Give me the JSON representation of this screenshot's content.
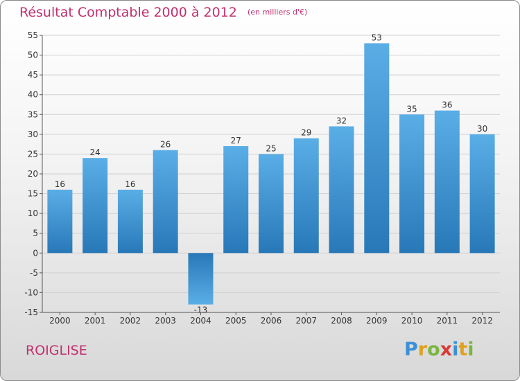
{
  "chart_data": {
    "type": "bar",
    "title": "Résultat Comptable 2000 à 2012",
    "subtitle": "(en milliers d'€)",
    "categories": [
      "2000",
      "2001",
      "2002",
      "2003",
      "2004",
      "2005",
      "2006",
      "2007",
      "2008",
      "2009",
      "2010",
      "2011",
      "2012"
    ],
    "values": [
      16,
      24,
      16,
      26,
      -13,
      27,
      25,
      29,
      32,
      53,
      35,
      36,
      30
    ],
    "data_labels": [
      "16",
      "24",
      "16",
      "26",
      "-13",
      "27",
      "25",
      "29",
      "32",
      "53",
      "35",
      "36",
      "30"
    ],
    "y_ticks": [
      -15,
      -10,
      -5,
      0,
      5,
      10,
      15,
      20,
      25,
      30,
      35,
      40,
      45,
      50,
      55
    ],
    "y_tick_labels": [
      "-15",
      "-10",
      "-5",
      "0",
      "5",
      "10",
      "15",
      "20",
      "25",
      "30",
      "35",
      "40",
      "45",
      "50",
      "55"
    ],
    "ylim": [
      -15,
      55
    ],
    "xlabel": "",
    "ylabel": "",
    "grid": true,
    "legend": "none"
  },
  "footer": {
    "town": "ROIGLISE",
    "logo_letters": [
      "P",
      "r",
      "o",
      "x",
      "i",
      "t",
      "i"
    ]
  },
  "colors": {
    "title": "#c0306e",
    "bar_light": "#5aaee6",
    "bar_dark": "#2878b8",
    "grid": "#cfcfcf",
    "logo": [
      "#3b8fd8",
      "#e0a020",
      "#7ab640",
      "#d83a3a",
      "#3b8fd8",
      "#e0a020",
      "#7ab640"
    ]
  }
}
